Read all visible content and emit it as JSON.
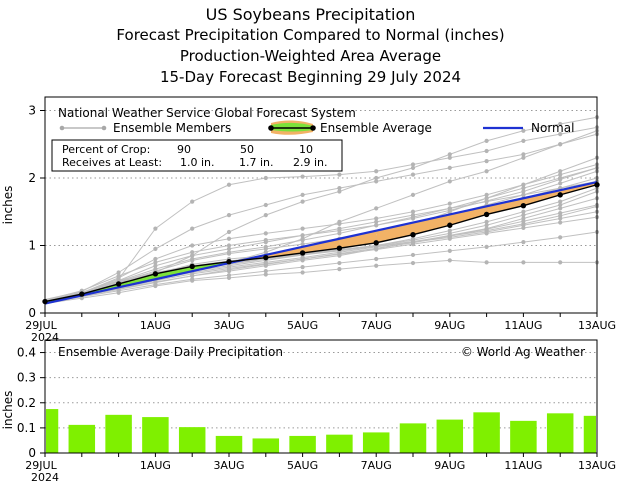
{
  "titles": {
    "line1": "US Soybeans Precipitation",
    "line2": "Forecast Precipitation Compared to Normal (inches)",
    "line3": "Production-Weighted Area Average",
    "line4": "15-Day Forecast Beginning 29 July 2024"
  },
  "colors": {
    "member": "#c0c0c0",
    "average": "#000000",
    "normal": "#1e32d2",
    "above_fill": "#7ce23a",
    "below_fill": "#f2b266",
    "bar": "#7ff000"
  },
  "legend": {
    "header": "National Weather Service Global Forecast System",
    "members": "Ensemble Members",
    "average": "Ensemble Average",
    "normal": "Normal"
  },
  "crop_table": {
    "row1_label": "Percent of Crop:",
    "row1_values": [
      "90",
      "50",
      "10"
    ],
    "row2_label": "Receives at Least:",
    "row2_values": [
      "1.0 in.",
      "1.7 in.",
      "2.9 in."
    ]
  },
  "copyright": "© World Ag Weather",
  "x_axis": {
    "first_label": "29JUL",
    "first_year": "2024",
    "labels": [
      "29JUL",
      "1AUG",
      "3AUG",
      "5AUG",
      "7AUG",
      "9AUG",
      "11AUG",
      "13AUG"
    ],
    "positions": [
      0,
      3,
      5,
      7,
      9,
      11,
      13,
      15
    ]
  },
  "chart_data": [
    {
      "type": "line",
      "title": "Forecast Precipitation Compared to Normal (inches)",
      "ylabel": "inches",
      "xlim": [
        0,
        15
      ],
      "ylim": [
        0,
        3.2
      ],
      "yticks": [
        0,
        1,
        2,
        3
      ],
      "x": [
        0,
        1,
        2,
        3,
        4,
        5,
        6,
        7,
        8,
        9,
        10,
        11,
        12,
        13,
        14,
        15
      ],
      "series": [
        {
          "name": "Ensemble Average",
          "values": [
            0.17,
            0.28,
            0.43,
            0.58,
            0.69,
            0.76,
            0.82,
            0.89,
            0.96,
            1.04,
            1.16,
            1.3,
            1.46,
            1.59,
            1.75,
            1.9
          ]
        },
        {
          "name": "Normal",
          "values": [
            0.14,
            0.26,
            0.38,
            0.5,
            0.62,
            0.74,
            0.86,
            0.98,
            1.1,
            1.22,
            1.34,
            1.46,
            1.58,
            1.7,
            1.82,
            1.94
          ]
        }
      ],
      "members": [
        [
          0.2,
          0.32,
          0.6,
          0.95,
          1.25,
          1.45,
          1.6,
          1.75,
          1.85,
          1.95,
          2.05,
          2.15,
          2.25,
          2.35,
          2.5,
          2.65
        ],
        [
          0.17,
          0.3,
          0.5,
          1.25,
          1.65,
          1.9,
          2.0,
          2.02,
          2.05,
          2.1,
          2.2,
          2.3,
          2.4,
          2.55,
          2.65,
          2.75
        ],
        [
          0.18,
          0.28,
          0.45,
          0.6,
          0.85,
          1.2,
          1.45,
          1.65,
          1.8,
          2.0,
          2.15,
          2.35,
          2.55,
          2.7,
          2.8,
          2.9
        ],
        [
          0.16,
          0.27,
          0.4,
          0.55,
          0.65,
          0.75,
          0.9,
          1.1,
          1.35,
          1.55,
          1.75,
          1.95,
          2.1,
          2.3,
          2.5,
          2.7
        ],
        [
          0.17,
          0.29,
          0.42,
          0.58,
          0.72,
          0.8,
          0.85,
          0.92,
          1.0,
          1.1,
          1.3,
          1.5,
          1.7,
          1.9,
          2.1,
          2.3
        ],
        [
          0.15,
          0.25,
          0.35,
          0.45,
          0.55,
          0.62,
          0.7,
          0.78,
          0.85,
          0.95,
          1.05,
          1.15,
          1.25,
          1.4,
          1.55,
          1.7
        ],
        [
          0.16,
          0.26,
          0.38,
          0.5,
          0.6,
          0.68,
          0.75,
          0.82,
          0.9,
          0.98,
          1.05,
          1.12,
          1.2,
          1.3,
          1.4,
          1.5
        ],
        [
          0.15,
          0.24,
          0.33,
          0.42,
          0.5,
          0.56,
          0.62,
          0.68,
          0.74,
          0.8,
          0.86,
          0.92,
          0.98,
          1.05,
          1.12,
          1.2
        ],
        [
          0.14,
          0.22,
          0.3,
          0.4,
          0.48,
          0.52,
          0.57,
          0.6,
          0.65,
          0.7,
          0.74,
          0.78,
          0.75,
          0.75,
          0.75,
          0.75
        ],
        [
          0.17,
          0.3,
          0.48,
          0.7,
          0.85,
          0.95,
          1.05,
          1.15,
          1.25,
          1.35,
          1.45,
          1.55,
          1.65,
          1.75,
          1.85,
          1.95
        ],
        [
          0.18,
          0.31,
          0.46,
          0.62,
          0.78,
          0.88,
          0.95,
          1.02,
          1.1,
          1.2,
          1.32,
          1.45,
          1.6,
          1.75,
          1.92,
          2.1
        ],
        [
          0.16,
          0.28,
          0.44,
          0.6,
          0.7,
          0.77,
          0.83,
          0.88,
          0.94,
          1.0,
          1.08,
          1.18,
          1.3,
          1.45,
          1.6,
          1.8
        ],
        [
          0.17,
          0.27,
          0.4,
          0.52,
          0.62,
          0.7,
          0.78,
          0.86,
          0.95,
          1.05,
          1.18,
          1.32,
          1.48,
          1.62,
          1.78,
          1.95
        ],
        [
          0.16,
          0.26,
          0.36,
          0.46,
          0.55,
          0.64,
          0.72,
          0.8,
          0.88,
          0.96,
          1.04,
          1.14,
          1.24,
          1.36,
          1.48,
          1.6
        ],
        [
          0.18,
          0.3,
          0.52,
          0.8,
          1.0,
          1.1,
          1.18,
          1.25,
          1.32,
          1.4,
          1.5,
          1.62,
          1.75,
          1.9,
          2.05,
          2.2
        ],
        [
          0.17,
          0.29,
          0.47,
          0.65,
          0.8,
          0.9,
          0.98,
          1.08,
          1.18,
          1.3,
          1.42,
          1.55,
          1.7,
          1.85,
          2.0,
          2.15
        ],
        [
          0.15,
          0.25,
          0.37,
          0.48,
          0.58,
          0.66,
          0.73,
          0.8,
          0.87,
          0.94,
          1.02,
          1.1,
          1.18,
          1.26,
          1.34,
          1.42
        ],
        [
          0.16,
          0.27,
          0.42,
          0.56,
          0.67,
          0.74,
          0.8,
          0.86,
          0.92,
          0.99,
          1.06,
          1.14,
          1.22,
          1.32,
          1.44,
          1.58
        ],
        [
          0.19,
          0.33,
          0.55,
          0.75,
          0.9,
          1.0,
          1.08,
          1.15,
          1.22,
          1.3,
          1.4,
          1.52,
          1.66,
          1.8,
          1.98,
          2.15
        ],
        [
          0.16,
          0.28,
          0.43,
          0.57,
          0.68,
          0.75,
          0.81,
          0.87,
          0.93,
          1.0,
          1.1,
          1.22,
          1.35,
          1.5,
          1.65,
          1.85
        ],
        [
          0.17,
          0.28,
          0.41,
          0.54,
          0.64,
          0.72,
          0.8,
          0.9,
          1.0,
          1.12,
          1.25,
          1.4,
          1.55,
          1.7,
          1.85,
          2.0
        ]
      ]
    },
    {
      "type": "bar",
      "title": "Ensemble Average Daily Precipitation",
      "ylabel": "inches",
      "ylim": [
        0,
        0.45
      ],
      "yticks": [
        0,
        0.1,
        0.2,
        0.3,
        0.4
      ],
      "x": [
        0,
        1,
        2,
        3,
        4,
        5,
        6,
        7,
        8,
        9,
        10,
        11,
        12,
        13,
        14,
        15
      ],
      "values": [
        0.175,
        0.112,
        0.152,
        0.143,
        0.103,
        0.068,
        0.058,
        0.068,
        0.073,
        0.082,
        0.118,
        0.133,
        0.162,
        0.128,
        0.158,
        0.148
      ]
    }
  ]
}
